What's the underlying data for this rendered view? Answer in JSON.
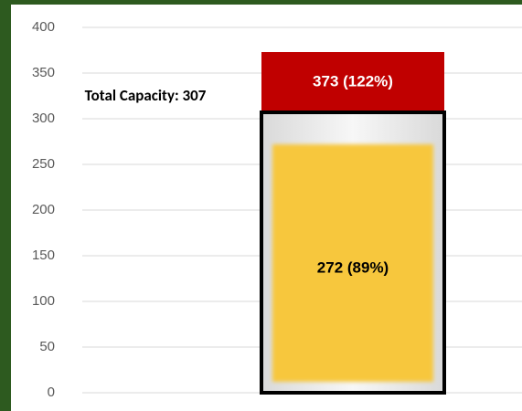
{
  "chart_data": {
    "type": "bar",
    "ylim": [
      0,
      400
    ],
    "yticks": [
      0,
      50,
      100,
      150,
      200,
      250,
      300,
      350,
      400
    ],
    "grid": true,
    "capacity": 307,
    "capacity_label": "Total Capacity: 307",
    "capacity_color": "#000000",
    "values": [
      272,
      373
    ],
    "value_labels": [
      "272 (89%)",
      "373 (122%)"
    ],
    "colors": [
      "#f7c73e",
      "#c00000"
    ]
  }
}
